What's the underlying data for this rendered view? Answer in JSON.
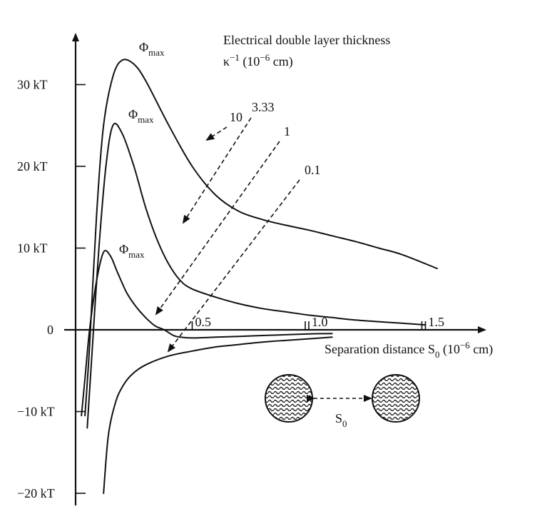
{
  "chart_data": {
    "type": "line",
    "xlabel_text": "Separation distance S",
    "xlabel_sub": "0",
    "xlabel_unit_open": " (10",
    "xlabel_unit_exp": "−6",
    "xlabel_unit_close": " cm)",
    "ylabel": "",
    "xlim": [
      0,
      1.5
    ],
    "ylim": [
      -20,
      30
    ],
    "y_ticks": [
      {
        "value": 30,
        "label": "30 kT"
      },
      {
        "value": 20,
        "label": "20 kT"
      },
      {
        "value": 10,
        "label": "10 kT"
      },
      {
        "value": 0,
        "label": "0"
      },
      {
        "value": -10,
        "label": "−10 kT"
      },
      {
        "value": -20,
        "label": "−20 kT"
      }
    ],
    "x_ticks": [
      {
        "value": 0.5,
        "label": "0.5"
      },
      {
        "value": 1.0,
        "label": "1.0"
      },
      {
        "value": 1.5,
        "label": "1.5"
      }
    ],
    "legend_title_line1": "Electrical double layer thickness",
    "legend_title_kappa": "κ",
    "legend_title_kappa_exp": "−1",
    "legend_title_unit_open": " (10",
    "legend_title_unit_exp": "−6",
    "legend_title_unit_close": " cm)",
    "phi_symbol": "Φ",
    "phi_sub": "max",
    "sphere_gap_label": "S",
    "sphere_gap_sub": "0",
    "series": [
      {
        "name": "10",
        "x": [
          0.04,
          0.06,
          0.09,
          0.12,
          0.16,
          0.2,
          0.25,
          0.3,
          0.4,
          0.5,
          0.6,
          0.7,
          0.8,
          0.9,
          1.0,
          1.1,
          1.2,
          1.3,
          1.4,
          1.55
        ],
        "y": [
          -10.5,
          -2,
          14,
          25,
          31,
          33,
          32.5,
          30.5,
          25,
          20,
          16.5,
          14.5,
          13.5,
          12.8,
          12.2,
          11.5,
          10.8,
          10,
          9.2,
          7.5
        ]
      },
      {
        "name": "3.33",
        "x": [
          0.05,
          0.07,
          0.1,
          0.13,
          0.16,
          0.2,
          0.25,
          0.3,
          0.35,
          0.4,
          0.45,
          0.5,
          0.6,
          0.7,
          0.8,
          0.9,
          1.0,
          1.1,
          1.2,
          1.3,
          1.4,
          1.5
        ],
        "y": [
          -12,
          -3,
          10,
          20,
          25,
          24,
          20,
          15,
          11,
          8,
          6,
          5,
          4,
          3.2,
          2.6,
          2.2,
          1.8,
          1.5,
          1.2,
          1.0,
          0.8,
          0.6
        ]
      },
      {
        "name": "1",
        "x": [
          0.025,
          0.04,
          0.06,
          0.09,
          0.12,
          0.15,
          0.18,
          0.22,
          0.26,
          0.3,
          0.34,
          0.38,
          0.42,
          0.45,
          0.5,
          0.6,
          0.7,
          0.8,
          0.9,
          1.0,
          1.1
        ],
        "y": [
          -10.5,
          -6,
          0,
          6,
          9.5,
          9,
          7,
          4.5,
          2.8,
          1.5,
          0.5,
          0,
          -0.7,
          -0.9,
          -1.0,
          -0.9,
          -0.8,
          -0.7,
          -0.6,
          -0.5,
          -0.45
        ]
      },
      {
        "name": "0.1",
        "x": [
          0.12,
          0.14,
          0.17,
          0.2,
          0.24,
          0.3,
          0.4,
          0.5,
          0.6,
          0.7,
          0.8,
          0.9,
          1.0,
          1.1
        ],
        "y": [
          -20,
          -13,
          -9,
          -7,
          -5.5,
          -4.3,
          -3.2,
          -2.6,
          -2.1,
          -1.8,
          -1.5,
          -1.3,
          -1.1,
          -0.9
        ]
      }
    ]
  }
}
